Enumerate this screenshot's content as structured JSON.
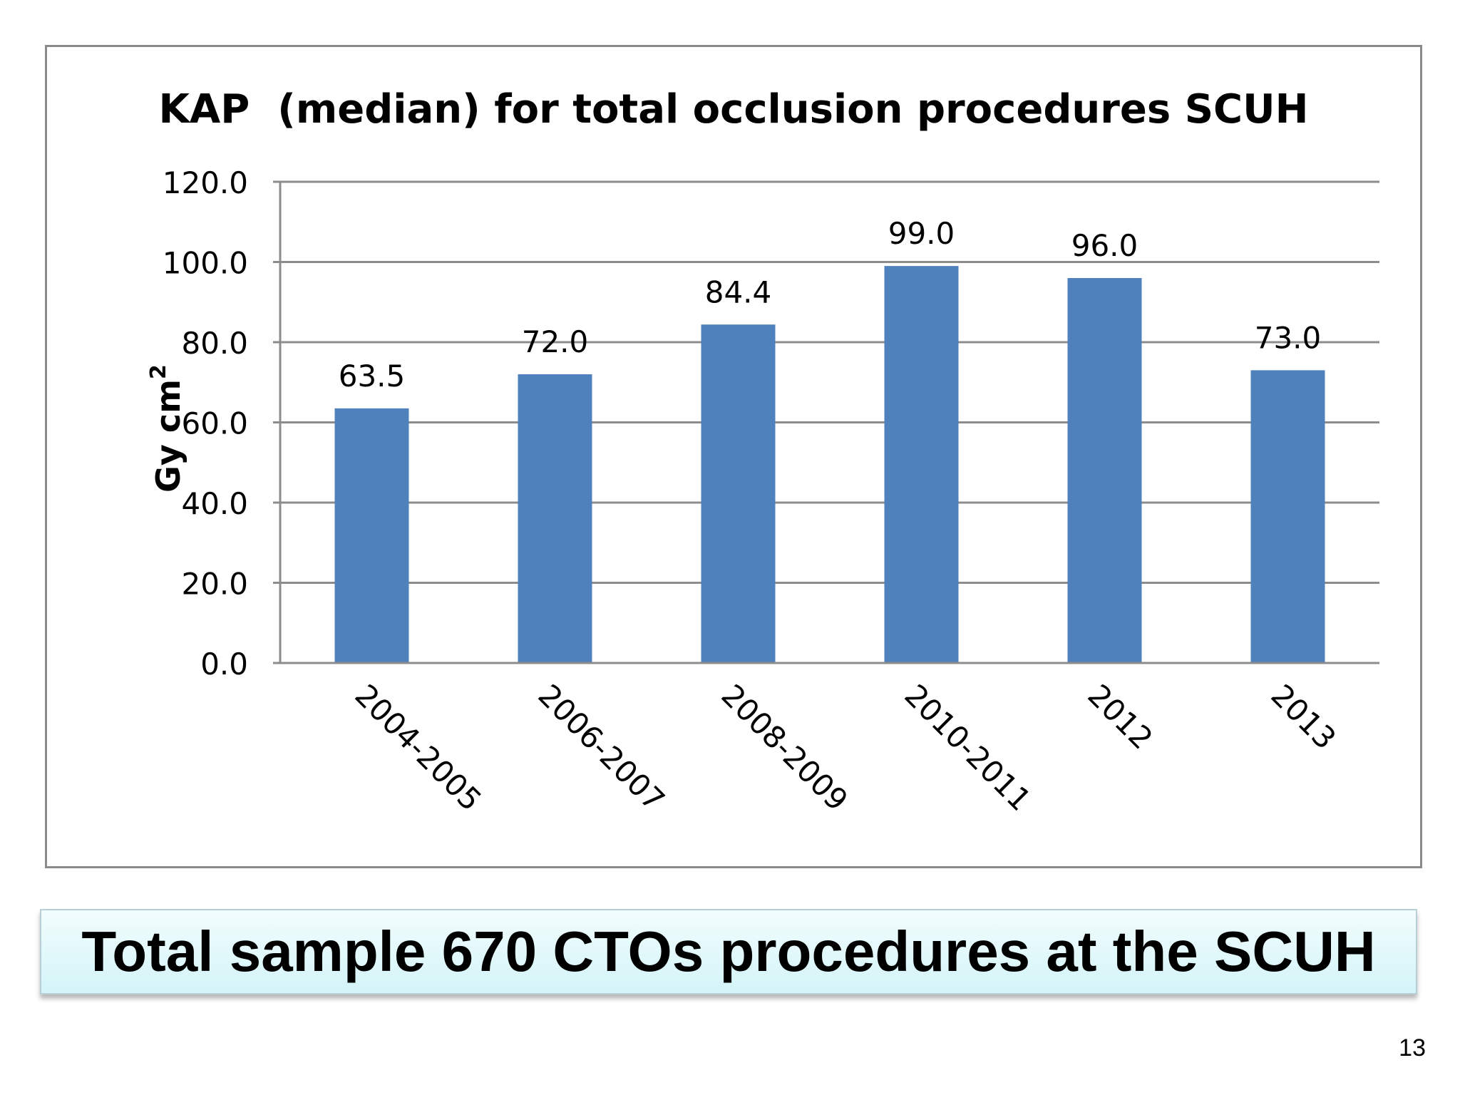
{
  "chart_data": {
    "type": "bar",
    "title": "KAP  (median) for total occlusion procedures SCUH",
    "ylabel": "Gy cm",
    "ylabel_superscript": "2",
    "xlabel": "",
    "categories": [
      "2004-2005",
      "2006-2007",
      "2008-2009",
      "2010-2011",
      "2012",
      "2013"
    ],
    "values": [
      63.5,
      72.0,
      84.4,
      99.0,
      96.0,
      73.0
    ],
    "data_labels": [
      "63.5",
      "72.0",
      "84.4",
      "99.0",
      "96.0",
      "73.0"
    ],
    "ylim": [
      0,
      120
    ],
    "yticks": [
      "0.0",
      "20.0",
      "40.0",
      "60.0",
      "80.0",
      "100.0",
      "120.0"
    ],
    "grid": true,
    "legend": "none",
    "bar_color": "#4f81bd"
  },
  "caption": "Total sample 670 CTOs procedures at the SCUH",
  "page_number": "13"
}
